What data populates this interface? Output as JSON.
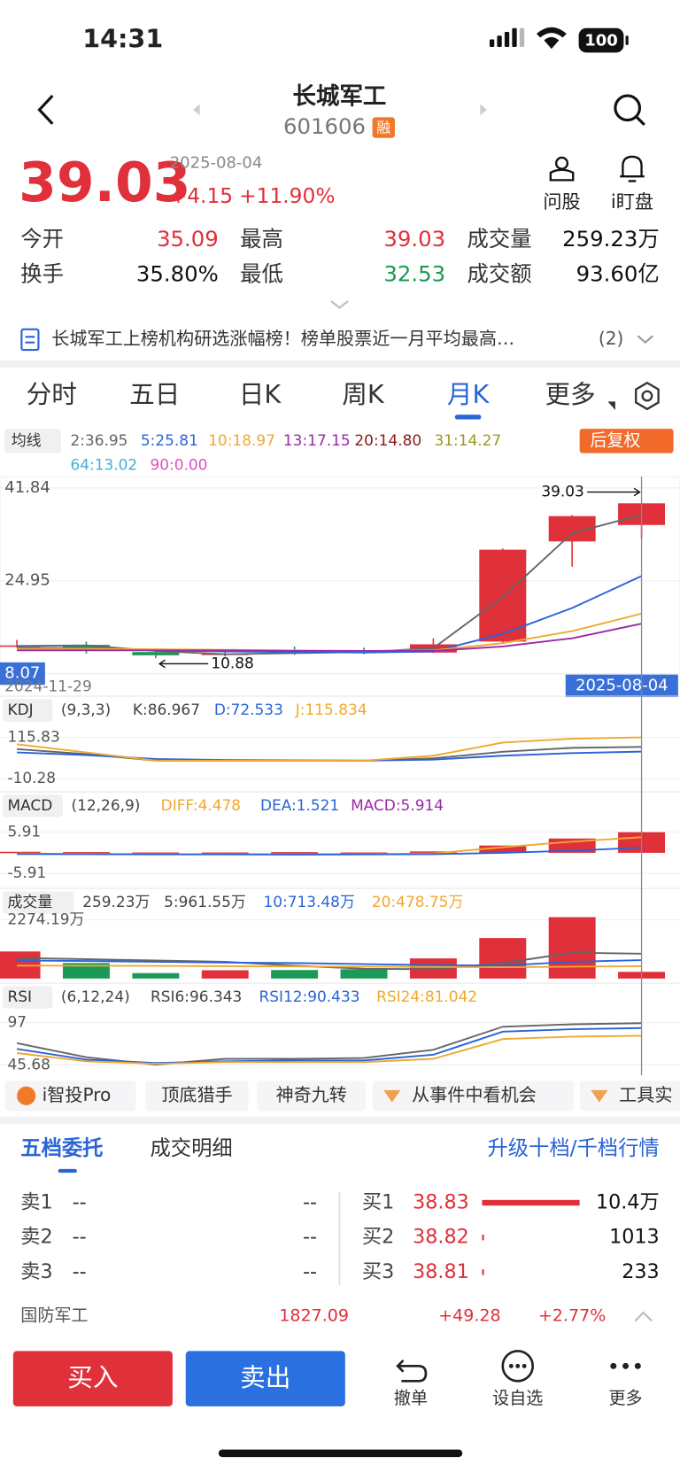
{
  "status_bar": {
    "time": "14:31",
    "battery": "100"
  },
  "header": {
    "title": "长城军工",
    "code": "601606",
    "badge": "融"
  },
  "quote": {
    "price": "39.03",
    "date": "2025-08-04",
    "change": "+4.15",
    "change_pct": "+11.90%"
  },
  "actions": [
    "问股",
    "i盯盘"
  ],
  "stats": [
    {
      "label": "今开",
      "value": "35.09",
      "color": "#e0303a"
    },
    {
      "label": "最高",
      "value": "39.03",
      "color": "#e0303a"
    },
    {
      "label": "成交量",
      "value": "259.23万",
      "color": "#111111"
    },
    {
      "label": "换手",
      "value": "35.80%",
      "color": "#111111"
    },
    {
      "label": "最低",
      "value": "32.53",
      "color": "#1a9a56"
    },
    {
      "label": "成交额",
      "value": "93.60亿",
      "color": "#111111"
    }
  ],
  "news": {
    "text": "长城军工上榜机构研选涨幅榜！榜单股票近一月平均最高…",
    "count": "(2)"
  },
  "tabs": {
    "items": [
      "分时",
      "五日",
      "日K",
      "周K",
      "月K",
      "更多"
    ],
    "active": 4
  },
  "ma_legend": {
    "title": "均线",
    "items": [
      {
        "text": "2:36.95",
        "color": "#666666"
      },
      {
        "text": "5:25.81",
        "color": "#2a64d8"
      },
      {
        "text": "10:18.97",
        "color": "#f0a830"
      },
      {
        "text": "13:17.15",
        "color": "#9a2aa8"
      },
      {
        "text": "20:14.80",
        "color": "#8a1a1a"
      },
      {
        "text": "31:14.27",
        "color": "#9a9a20"
      },
      {
        "text": "64:13.02",
        "color": "#40b0d8"
      },
      {
        "text": "90:0.00",
        "color": "#e050c0"
      }
    ],
    "adjust": "后复权"
  },
  "kline": {
    "ylim": [
      8.07,
      41.84
    ],
    "yticks": [
      41.84,
      24.95,
      8.07
    ],
    "open": [
      13.0,
      13.3,
      12.0,
      11.5,
      12.0,
      12.3,
      11.9,
      13.9,
      32.1,
      35.09
    ],
    "high": [
      14.2,
      13.9,
      12.2,
      12.3,
      13.0,
      12.8,
      14.5,
      30.8,
      36.9,
      39.03
    ],
    "low": [
      12.8,
      11.7,
      10.88,
      11.2,
      11.5,
      11.6,
      11.8,
      13.5,
      27.5,
      32.53
    ],
    "close": [
      13.2,
      12.2,
      11.4,
      11.7,
      11.8,
      11.9,
      13.4,
      30.6,
      36.7,
      39.03
    ],
    "up_color": "#e0303a",
    "down_color": "#1a9a56",
    "ma": [
      {
        "color": "#666666",
        "values": [
          13.1,
          13.2,
          12.2,
          11.6,
          11.8,
          12.0,
          12.7,
          22.0,
          33.6,
          36.95
        ]
      },
      {
        "color": "#2a64d8",
        "values": [
          12.8,
          12.7,
          12.3,
          12.1,
          12.0,
          11.9,
          12.1,
          15.3,
          20.0,
          25.81
        ]
      },
      {
        "color": "#f0a830",
        "values": [
          12.6,
          12.6,
          12.5,
          12.4,
          12.3,
          12.2,
          12.3,
          13.6,
          15.8,
          18.97
        ]
      },
      {
        "color": "#9a2aa8",
        "values": [
          12.3,
          12.3,
          12.3,
          12.3,
          12.2,
          12.2,
          12.2,
          13.0,
          14.5,
          17.15
        ]
      }
    ],
    "high_label": "39.03",
    "low_label": "10.88",
    "start_date": "2024-11-29",
    "end_date": "2025-08-04"
  },
  "kdj": {
    "title": "KDJ",
    "params": "(9,3,3)",
    "legend": [
      {
        "text": "K:86.967",
        "color": "#444444"
      },
      {
        "text": "D:72.533",
        "color": "#2a64d8"
      },
      {
        "text": "J:115.834",
        "color": "#f0a830"
      }
    ],
    "ylim": [
      -10.28,
      115.83
    ],
    "yticks": [
      115.83,
      -10.28
    ],
    "series": [
      {
        "color": "#666666",
        "values": [
          80,
          65,
          45,
          45,
          45,
          45,
          52,
          72,
          84,
          86.967
        ]
      },
      {
        "color": "#2a64d8",
        "values": [
          70,
          62,
          50,
          47,
          46,
          45,
          48,
          60,
          68,
          72.533
        ]
      },
      {
        "color": "#f0a830",
        "values": [
          95,
          70,
          45,
          45,
          45,
          45,
          60,
          100,
          112,
          115.834
        ]
      }
    ]
  },
  "macd": {
    "title": "MACD",
    "params": "(12,26,9)",
    "legend": [
      {
        "text": "DIFF:4.478",
        "color": "#f0a830"
      },
      {
        "text": "DEA:1.521",
        "color": "#2a64d8"
      },
      {
        "text": "MACD:5.914",
        "color": "#9a2aa8"
      }
    ],
    "ylim": [
      -5.91,
      5.91
    ],
    "yticks": [
      5.91,
      -5.91
    ],
    "bars": [
      0.3,
      0.2,
      0.1,
      0.1,
      0.2,
      0.1,
      0.4,
      2.1,
      4.1,
      5.914
    ],
    "series": [
      {
        "color": "#f0a830",
        "values": [
          -0.2,
          -0.3,
          -0.4,
          -0.4,
          -0.4,
          -0.4,
          -0.2,
          1.6,
          3.2,
          4.478
        ]
      },
      {
        "color": "#2a64d8",
        "values": [
          -0.35,
          -0.4,
          -0.45,
          -0.45,
          -0.5,
          -0.45,
          -0.4,
          0.0,
          0.6,
          1.521
        ]
      }
    ]
  },
  "volume": {
    "title": "成交量",
    "legend": [
      {
        "text": "259.23万",
        "color": "#444444"
      },
      {
        "text": "5:961.55万",
        "color": "#444444"
      },
      {
        "text": "10:713.48万",
        "color": "#2a64d8"
      },
      {
        "text": "20:478.75万",
        "color": "#f0a830"
      }
    ],
    "ylim": [
      0,
      2400
    ],
    "yticks": [
      {
        "value": 2274.19,
        "label": "2274.19万"
      }
    ],
    "bars": [
      1050,
      600,
      210,
      320,
      330,
      360,
      780,
      1570,
      2380,
      259.23
    ],
    "series": [
      {
        "color": "#666666",
        "values": [
          800,
          750,
          700,
          650,
          500,
          380,
          360,
          600,
          1000,
          961.55
        ]
      },
      {
        "color": "#2a64d8",
        "values": [
          700,
          680,
          650,
          620,
          600,
          560,
          520,
          500,
          650,
          713.48
        ]
      },
      {
        "color": "#f0a830",
        "values": [
          500,
          500,
          490,
          480,
          470,
          460,
          450,
          440,
          460,
          478.75
        ]
      }
    ]
  },
  "rsi": {
    "title": "RSI",
    "params": "(6,12,24)",
    "legend": [
      {
        "text": "RSI6:96.343",
        "color": "#444444"
      },
      {
        "text": "RSI12:90.433",
        "color": "#2a64d8"
      },
      {
        "text": "RSI24:81.042",
        "color": "#f0a830"
      }
    ],
    "ylim": [
      45.68,
      97
    ],
    "yticks": [
      97,
      45.68
    ],
    "series": [
      {
        "color": "#666666",
        "values": [
          72,
          55,
          46,
          53,
          53,
          54,
          64,
          92,
          95,
          96.343
        ]
      },
      {
        "color": "#2a64d8",
        "values": [
          65,
          52,
          48,
          50,
          51,
          51,
          58,
          86,
          89,
          90.433
        ]
      },
      {
        "color": "#f0a830",
        "values": [
          60,
          50,
          47,
          49,
          49,
          49,
          53,
          77,
          80,
          81.042
        ]
      }
    ]
  },
  "tools": [
    "i智投Pro",
    "顶底猎手",
    "神奇九转",
    "从事件中看机会",
    "工具实"
  ],
  "order_book": {
    "tabs": [
      "五档委托",
      "成交明细"
    ],
    "link": "升级十档/千档行情",
    "sell": {
      "levels": [
        "卖1",
        "卖2",
        "卖3"
      ],
      "prices": [
        "--",
        "--",
        "--"
      ],
      "volumes": [
        "--",
        "--",
        "--"
      ]
    },
    "buy": {
      "levels": [
        "买1",
        "买2",
        "买3"
      ],
      "prices": [
        "38.83",
        "38.82",
        "38.81"
      ],
      "volumes": [
        104000,
        1013,
        233
      ],
      "value_labels": [
        "10.4万",
        "1013",
        "233"
      ],
      "bar_color": "#e0303a"
    }
  },
  "index": {
    "name": "国防军工",
    "value": "1827.09",
    "change": "+49.28",
    "change_pct": "+2.77%"
  },
  "bottom_bar": {
    "buy": "买入",
    "sell": "卖出",
    "actions": [
      "撤单",
      "设自选",
      "更多"
    ]
  }
}
